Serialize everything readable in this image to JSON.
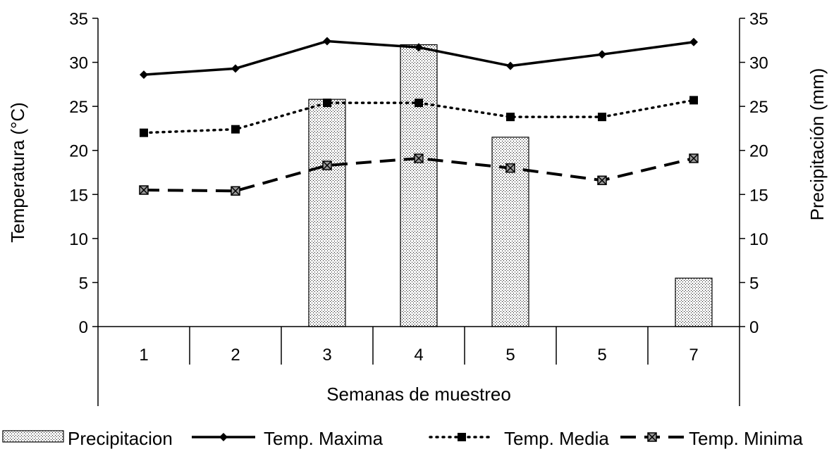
{
  "chart_data": {
    "type": "bar",
    "categories": [
      "1",
      "2",
      "3",
      "4",
      "5",
      "5",
      "7"
    ],
    "xlabel": "Semanas de muestreo",
    "ylabel": "Temperatura (°C)",
    "y2label": "Precipitación (mm)",
    "ylim": [
      0,
      35
    ],
    "y2lim": [
      0,
      35
    ],
    "yticks": [
      "0",
      "5",
      "10",
      "15",
      "20",
      "25",
      "30",
      "35"
    ],
    "y2ticks": [
      "0",
      "5",
      "10",
      "15",
      "20",
      "25",
      "30",
      "35"
    ],
    "grid": false,
    "legend_position": "bottom",
    "series": [
      {
        "name": "Precipitacion",
        "type": "bar",
        "axis": "right",
        "pattern": "dotted",
        "values": [
          0,
          0,
          25.8,
          32.0,
          21.5,
          0,
          5.5
        ]
      },
      {
        "name": "Temp. Maxima",
        "type": "line",
        "axis": "left",
        "line_style": "solid",
        "marker": "diamond",
        "values": [
          28.6,
          29.3,
          32.4,
          31.7,
          29.6,
          30.9,
          32.3
        ]
      },
      {
        "name": "Temp. Media",
        "type": "line",
        "axis": "left",
        "line_style": "dotted",
        "marker": "square",
        "values": [
          22.0,
          22.4,
          25.4,
          25.4,
          23.8,
          23.8,
          25.7
        ]
      },
      {
        "name": "Temp. Minima",
        "type": "line",
        "axis": "left",
        "line_style": "dashed",
        "marker": "square-x",
        "values": [
          15.5,
          15.4,
          18.3,
          19.1,
          18.0,
          16.6,
          19.1
        ]
      }
    ]
  }
}
